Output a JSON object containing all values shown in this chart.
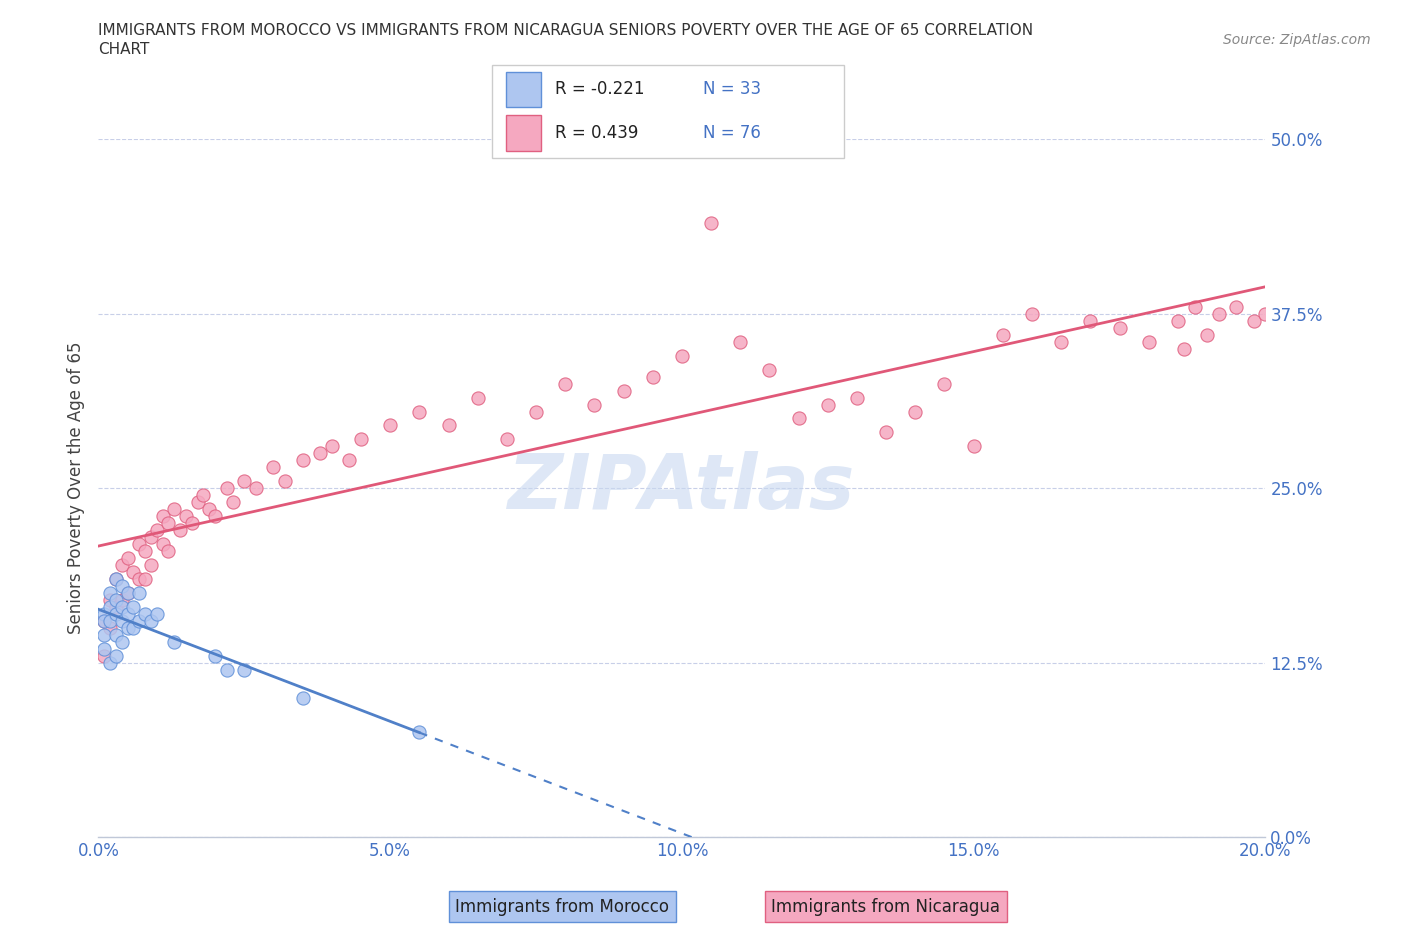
{
  "title_line1": "IMMIGRANTS FROM MOROCCO VS IMMIGRANTS FROM NICARAGUA SENIORS POVERTY OVER THE AGE OF 65 CORRELATION",
  "title_line2": "CHART",
  "source": "Source: ZipAtlas.com",
  "ylabel": "Seniors Poverty Over the Age of 65",
  "xlim": [
    0.0,
    0.2
  ],
  "ylim": [
    0.0,
    0.5
  ],
  "yticks": [
    0.0,
    0.125,
    0.25,
    0.375,
    0.5
  ],
  "ytick_labels": [
    "0.0%",
    "12.5%",
    "25.0%",
    "37.5%",
    "50.0%"
  ],
  "xticks": [
    0.0,
    0.05,
    0.1,
    0.15,
    0.2
  ],
  "xtick_labels": [
    "0.0%",
    "5.0%",
    "10.0%",
    "15.0%",
    "20.0%"
  ],
  "morocco_color": "#aec6f0",
  "nicaragua_color": "#f5a8c0",
  "morocco_edge_color": "#6090d8",
  "nicaragua_edge_color": "#e06080",
  "morocco_line_color": "#5080c8",
  "nicaragua_line_color": "#e05878",
  "watermark_color": "#c8d8f0",
  "legend_R_morocco": "-0.221",
  "legend_N_morocco": "33",
  "legend_R_nicaragua": "0.439",
  "legend_N_nicaragua": "76",
  "morocco_x": [
    0.001,
    0.001,
    0.001,
    0.001,
    0.002,
    0.002,
    0.002,
    0.002,
    0.003,
    0.003,
    0.003,
    0.003,
    0.003,
    0.004,
    0.004,
    0.004,
    0.004,
    0.005,
    0.005,
    0.005,
    0.006,
    0.006,
    0.007,
    0.007,
    0.008,
    0.009,
    0.01,
    0.013,
    0.02,
    0.022,
    0.025,
    0.035,
    0.055
  ],
  "morocco_y": [
    0.16,
    0.155,
    0.145,
    0.135,
    0.175,
    0.165,
    0.155,
    0.125,
    0.185,
    0.17,
    0.16,
    0.145,
    0.13,
    0.18,
    0.165,
    0.155,
    0.14,
    0.175,
    0.16,
    0.15,
    0.165,
    0.15,
    0.175,
    0.155,
    0.16,
    0.155,
    0.16,
    0.14,
    0.13,
    0.12,
    0.12,
    0.1,
    0.075
  ],
  "nicaragua_x": [
    0.001,
    0.001,
    0.002,
    0.002,
    0.003,
    0.003,
    0.004,
    0.004,
    0.005,
    0.005,
    0.006,
    0.007,
    0.007,
    0.008,
    0.008,
    0.009,
    0.009,
    0.01,
    0.011,
    0.011,
    0.012,
    0.012,
    0.013,
    0.014,
    0.015,
    0.016,
    0.017,
    0.018,
    0.019,
    0.02,
    0.022,
    0.023,
    0.025,
    0.027,
    0.03,
    0.032,
    0.035,
    0.038,
    0.04,
    0.043,
    0.045,
    0.05,
    0.055,
    0.06,
    0.065,
    0.07,
    0.075,
    0.08,
    0.085,
    0.09,
    0.095,
    0.1,
    0.105,
    0.11,
    0.115,
    0.12,
    0.125,
    0.13,
    0.135,
    0.14,
    0.145,
    0.15,
    0.155,
    0.16,
    0.165,
    0.17,
    0.175,
    0.18,
    0.185,
    0.186,
    0.188,
    0.19,
    0.192,
    0.195,
    0.198,
    0.2
  ],
  "nicaragua_y": [
    0.155,
    0.13,
    0.17,
    0.15,
    0.185,
    0.165,
    0.195,
    0.17,
    0.2,
    0.175,
    0.19,
    0.21,
    0.185,
    0.205,
    0.185,
    0.215,
    0.195,
    0.22,
    0.23,
    0.21,
    0.225,
    0.205,
    0.235,
    0.22,
    0.23,
    0.225,
    0.24,
    0.245,
    0.235,
    0.23,
    0.25,
    0.24,
    0.255,
    0.25,
    0.265,
    0.255,
    0.27,
    0.275,
    0.28,
    0.27,
    0.285,
    0.295,
    0.305,
    0.295,
    0.315,
    0.285,
    0.305,
    0.325,
    0.31,
    0.32,
    0.33,
    0.345,
    0.44,
    0.355,
    0.335,
    0.3,
    0.31,
    0.315,
    0.29,
    0.305,
    0.325,
    0.28,
    0.36,
    0.375,
    0.355,
    0.37,
    0.365,
    0.355,
    0.37,
    0.35,
    0.38,
    0.36,
    0.375,
    0.38,
    0.37,
    0.375
  ]
}
